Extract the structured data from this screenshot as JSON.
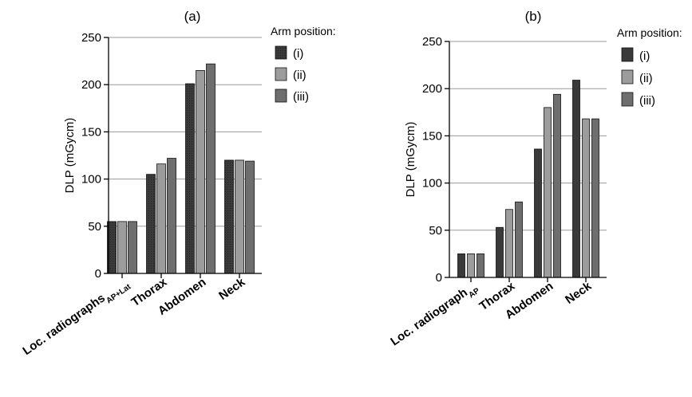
{
  "chart_data": [
    {
      "type": "bar",
      "title": "(a)",
      "ylabel": "DLP (mGycm)",
      "ylim": [
        0,
        250
      ],
      "yticks": [
        0,
        50,
        100,
        150,
        200,
        250
      ],
      "categories": [
        {
          "main": "Loc. radiographs",
          "sub": "AP+Lat"
        },
        {
          "main": "Thorax",
          "sub": ""
        },
        {
          "main": "Abdomen",
          "sub": ""
        },
        {
          "main": "Neck",
          "sub": ""
        }
      ],
      "legend_title": "Arm position:",
      "legend_position": "right",
      "grid": true,
      "series": [
        {
          "name": "(i)",
          "color": "#3a3a3a",
          "values": [
            55,
            105,
            201,
            120
          ]
        },
        {
          "name": "(ii)",
          "color": "#9c9c9c",
          "values": [
            55,
            116,
            215,
            120
          ]
        },
        {
          "name": "(iii)",
          "color": "#6e6e6e",
          "values": [
            55,
            122,
            222,
            119
          ]
        }
      ]
    },
    {
      "type": "bar",
      "title": "(b)",
      "ylabel": "DLP (mGycm)",
      "ylim": [
        0,
        250
      ],
      "yticks": [
        0,
        50,
        100,
        150,
        200,
        250
      ],
      "categories": [
        {
          "main": "Loc. radiograph",
          "sub": "AP"
        },
        {
          "main": "Thorax",
          "sub": ""
        },
        {
          "main": "Abdomen",
          "sub": ""
        },
        {
          "main": "Neck",
          "sub": ""
        }
      ],
      "legend_title": "Arm position:",
      "legend_position": "right",
      "grid": true,
      "series": [
        {
          "name": "(i)",
          "color": "#3a3a3a",
          "values": [
            25,
            53,
            136,
            209
          ]
        },
        {
          "name": "(ii)",
          "color": "#9c9c9c",
          "values": [
            25,
            72,
            180,
            168
          ]
        },
        {
          "name": "(iii)",
          "color": "#6e6e6e",
          "values": [
            25,
            80,
            194,
            168
          ]
        }
      ]
    }
  ]
}
